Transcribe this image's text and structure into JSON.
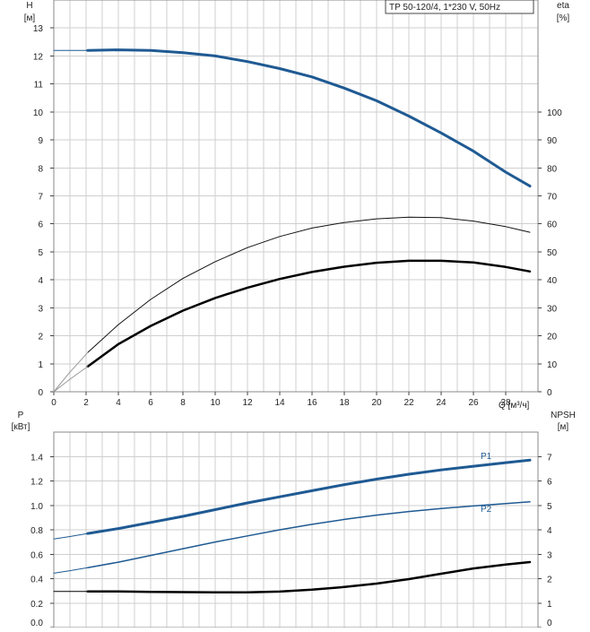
{
  "chart_data": [
    {
      "type": "line",
      "title": "TP 50-120/4, 1*230 V, 50Hz",
      "xlabel": "Q [м³/ч]",
      "ylabel": "H",
      "ylabel_unit": "[м]",
      "y2label": "eta",
      "y2label_unit": "[%]",
      "xlim": [
        0,
        30
      ],
      "ylim": [
        0,
        14
      ],
      "y2lim": [
        0,
        140
      ],
      "x_ticks": [
        0,
        2,
        4,
        6,
        8,
        10,
        12,
        14,
        16,
        18,
        20,
        22,
        24,
        26,
        28
      ],
      "y_ticks": [
        0,
        1,
        2,
        3,
        4,
        5,
        6,
        7,
        8,
        9,
        10,
        11,
        12,
        13
      ],
      "y2_ticks": [
        0,
        10,
        20,
        30,
        40,
        50,
        60,
        70,
        80,
        90,
        100
      ],
      "grid": true,
      "series": [
        {
          "axis": "left",
          "color": "#1f5a93",
          "width": 3,
          "x": [
            2.1,
            4,
            6,
            8,
            10,
            12,
            14,
            16,
            18,
            20,
            22,
            24,
            26,
            28,
            29.5
          ],
          "y": [
            12.2,
            12.22,
            12.2,
            12.12,
            12.0,
            11.8,
            11.55,
            11.25,
            10.85,
            10.4,
            9.85,
            9.25,
            8.6,
            7.85,
            7.35
          ]
        },
        {
          "axis": "left",
          "color": "#1f5a93",
          "width": 1,
          "x": [
            0,
            2.1
          ],
          "y": [
            12.2,
            12.2
          ]
        },
        {
          "axis": "right",
          "color": "#111111",
          "width": 1,
          "x": [
            2.1,
            4,
            6,
            8,
            10,
            12,
            14,
            16,
            18,
            20,
            22,
            24,
            26,
            28,
            29.5
          ],
          "y": [
            14,
            24,
            33,
            40.5,
            46.5,
            51.5,
            55.5,
            58.5,
            60.5,
            61.8,
            62.4,
            62.2,
            61,
            59,
            57
          ]
        },
        {
          "axis": "right",
          "color": "#999999",
          "width": 1,
          "x": [
            0,
            1,
            2.1
          ],
          "y": [
            0,
            7,
            14
          ]
        },
        {
          "axis": "right",
          "color": "#000000",
          "width": 2.5,
          "x": [
            2.1,
            4,
            6,
            8,
            10,
            12,
            14,
            16,
            18,
            20,
            22,
            24,
            26,
            28,
            29.5
          ],
          "y": [
            9,
            17,
            23.5,
            29,
            33.5,
            37.2,
            40.3,
            42.8,
            44.7,
            46.1,
            46.8,
            46.8,
            46.2,
            44.6,
            43
          ]
        },
        {
          "axis": "right",
          "color": "#999999",
          "width": 1,
          "x": [
            0,
            1,
            2.1
          ],
          "y": [
            0,
            4.5,
            9
          ]
        }
      ]
    },
    {
      "type": "line",
      "ylabel": "P",
      "ylabel_unit": "[кВт]",
      "y2label": "NPSH",
      "y2label_unit": "[м]",
      "xlim": [
        0,
        30
      ],
      "ylim": [
        0,
        1.6
      ],
      "y2lim": [
        0,
        8
      ],
      "y_ticks": [
        "0.0",
        "0.2",
        "0.4",
        "0.6",
        "0.8",
        "1.0",
        "1.2",
        "1.4"
      ],
      "y2_ticks": [
        0,
        1,
        2,
        3,
        4,
        5,
        6,
        7
      ],
      "grid": true,
      "series": [
        {
          "name": "P1",
          "axis": "left",
          "color": "#1f5a93",
          "width": 3,
          "x": [
            2.1,
            4,
            6,
            8,
            10,
            12,
            14,
            16,
            18,
            20,
            22,
            24,
            26,
            28,
            29.5
          ],
          "y": [
            0.77,
            0.81,
            0.86,
            0.91,
            0.965,
            1.02,
            1.07,
            1.12,
            1.17,
            1.215,
            1.255,
            1.29,
            1.32,
            1.35,
            1.37
          ]
        },
        {
          "axis": "left",
          "color": "#1f5a93",
          "width": 1,
          "x": [
            0,
            1,
            2.1
          ],
          "y": [
            0.725,
            0.745,
            0.77
          ]
        },
        {
          "name": "P2",
          "axis": "left",
          "color": "#1f5a93",
          "width": 1.5,
          "x": [
            2.1,
            4,
            6,
            8,
            10,
            12,
            14,
            16,
            18,
            20,
            22,
            24,
            26,
            28,
            29.5
          ],
          "y": [
            0.49,
            0.535,
            0.59,
            0.645,
            0.7,
            0.75,
            0.8,
            0.845,
            0.885,
            0.92,
            0.95,
            0.975,
            0.995,
            1.015,
            1.03
          ]
        },
        {
          "axis": "left",
          "color": "#1f5a93",
          "width": 1,
          "x": [
            0,
            1,
            2.1
          ],
          "y": [
            0.445,
            0.465,
            0.49
          ]
        },
        {
          "axis": "right",
          "color": "#000000",
          "width": 2.5,
          "x": [
            2.1,
            4,
            6,
            8,
            10,
            12,
            14,
            16,
            18,
            20,
            22,
            24,
            26,
            28,
            29.5
          ],
          "y": [
            1.48,
            1.48,
            1.46,
            1.45,
            1.44,
            1.44,
            1.47,
            1.55,
            1.66,
            1.8,
            1.98,
            2.2,
            2.42,
            2.58,
            2.68
          ]
        },
        {
          "axis": "right",
          "color": "#000000",
          "width": 1,
          "x": [
            0,
            2.1
          ],
          "y": [
            1.48,
            1.48
          ]
        }
      ]
    }
  ]
}
